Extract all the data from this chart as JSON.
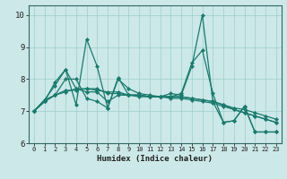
{
  "title": "",
  "xlabel": "Humidex (Indice chaleur)",
  "ylabel": "",
  "bg_color": "#cce8e8",
  "line_color": "#1a7a6e",
  "xlim": [
    -0.5,
    23.5
  ],
  "ylim": [
    6.0,
    10.3
  ],
  "yticks": [
    6,
    7,
    8,
    9,
    10
  ],
  "xticks": [
    0,
    1,
    2,
    3,
    4,
    5,
    6,
    7,
    8,
    9,
    10,
    11,
    12,
    13,
    14,
    15,
    16,
    17,
    18,
    19,
    20,
    21,
    22,
    23
  ],
  "series": [
    [
      7.0,
      7.3,
      7.9,
      8.3,
      7.2,
      9.25,
      8.4,
      7.1,
      8.05,
      7.5,
      7.5,
      7.45,
      7.45,
      7.55,
      7.5,
      8.4,
      10.0,
      7.3,
      6.65,
      6.7,
      7.15,
      6.35,
      6.35,
      6.35
    ],
    [
      7.0,
      7.35,
      7.8,
      8.3,
      7.7,
      7.6,
      7.6,
      7.3,
      7.5,
      7.5,
      7.5,
      7.45,
      7.45,
      7.45,
      7.45,
      7.4,
      7.35,
      7.3,
      7.2,
      7.1,
      7.05,
      6.95,
      6.85,
      6.75
    ],
    [
      7.0,
      7.35,
      7.5,
      7.65,
      7.65,
      7.7,
      7.7,
      7.55,
      7.55,
      7.5,
      7.5,
      7.45,
      7.45,
      7.45,
      7.45,
      7.4,
      7.35,
      7.3,
      7.2,
      7.05,
      6.95,
      6.85,
      6.75,
      6.65
    ],
    [
      7.0,
      7.3,
      7.5,
      7.6,
      7.7,
      7.7,
      7.65,
      7.6,
      7.6,
      7.5,
      7.45,
      7.45,
      7.45,
      7.4,
      7.4,
      7.35,
      7.3,
      7.25,
      7.15,
      7.05,
      6.95,
      6.85,
      6.75,
      6.65
    ],
    [
      7.0,
      7.3,
      7.5,
      8.0,
      8.0,
      7.4,
      7.3,
      7.1,
      8.0,
      7.7,
      7.55,
      7.5,
      7.45,
      7.45,
      7.55,
      8.5,
      8.9,
      7.55,
      6.65,
      6.7,
      7.15,
      6.35,
      6.35,
      6.35
    ]
  ]
}
